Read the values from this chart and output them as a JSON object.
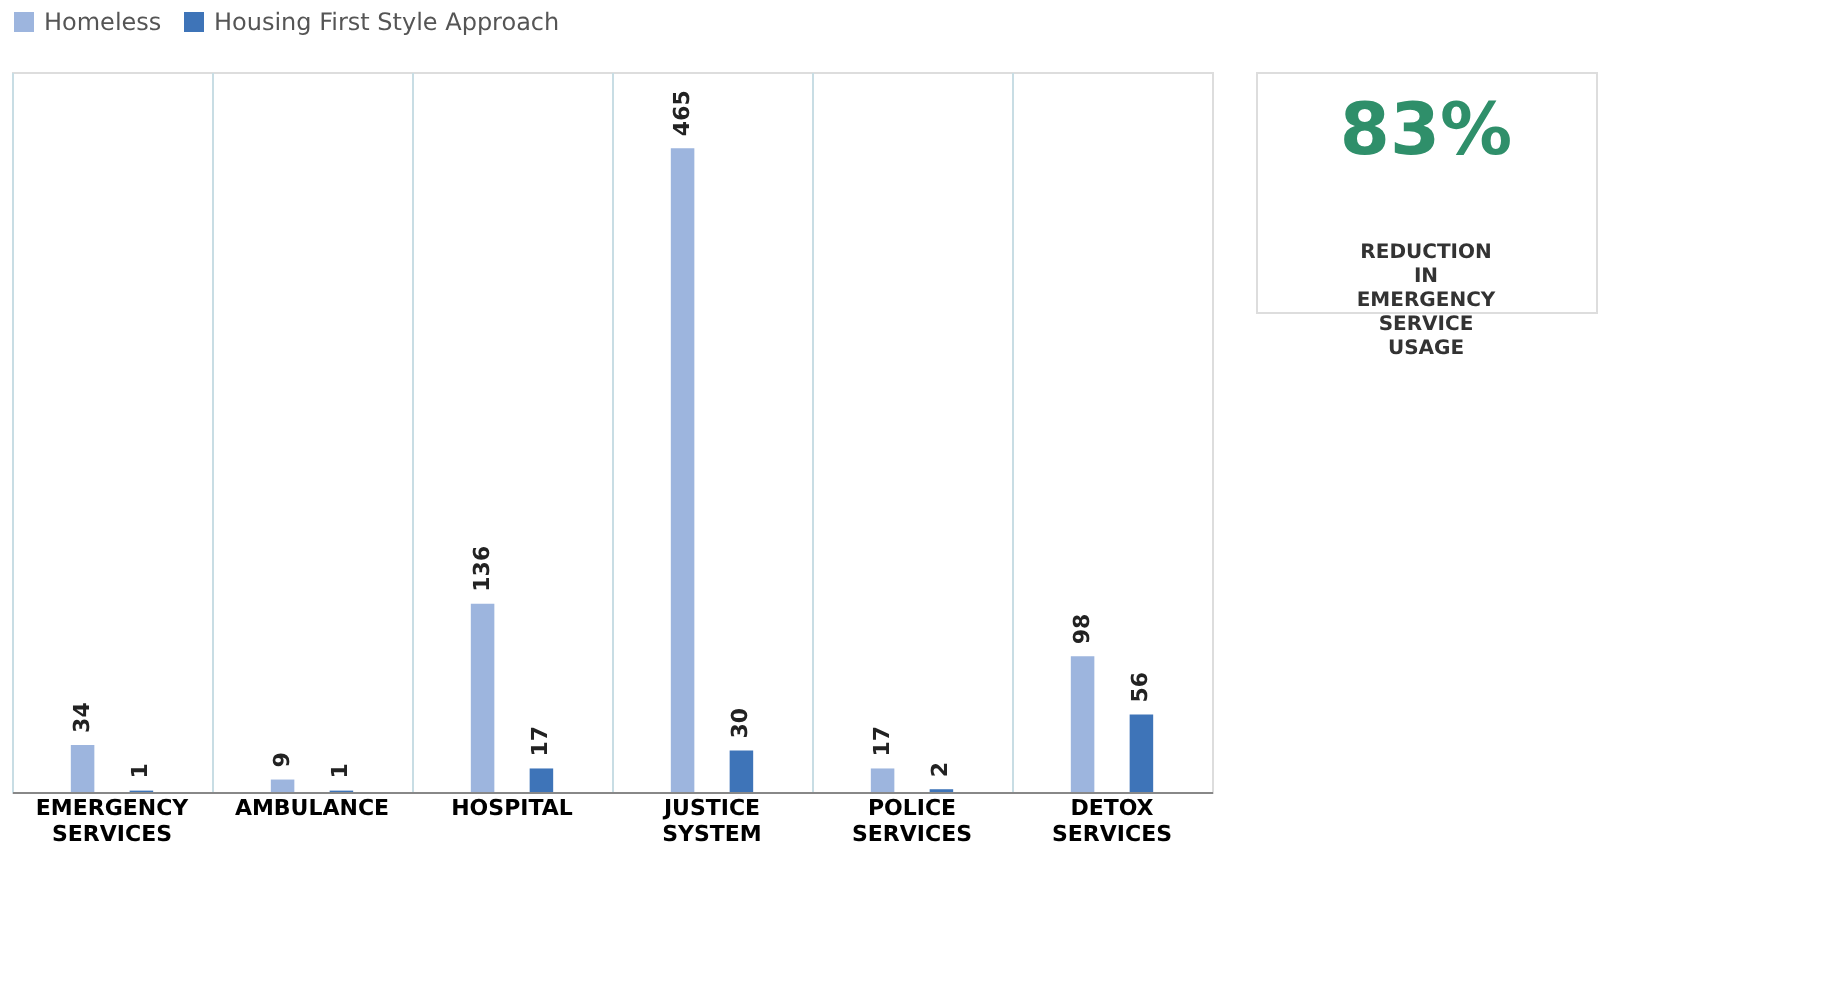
{
  "chart_data": {
    "type": "bar",
    "categories": [
      "EMERGENCY SERVICES",
      "AMBULANCE",
      "HOSPITAL",
      "JUSTICE SYSTEM",
      "POLICE SERVICES",
      "DETOX SERVICES"
    ],
    "series": [
      {
        "name": "Homeless",
        "color": "#9db5de",
        "values": [
          34,
          9,
          136,
          465,
          17,
          98
        ]
      },
      {
        "name": "Housing First Style Approach",
        "color": "#3e74b8",
        "values": [
          1,
          1,
          17,
          30,
          2,
          56
        ]
      }
    ],
    "ylim": [
      0,
      520
    ],
    "tick_labels": "x",
    "data_labels": true,
    "legend": "top",
    "annotations": [
      "83%",
      "REDUCTION IN EMERGENCY SERVICE USAGE"
    ]
  }
}
